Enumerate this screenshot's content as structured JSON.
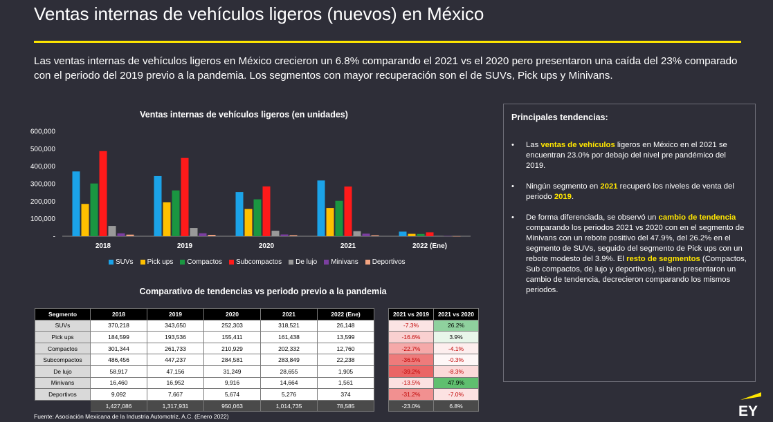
{
  "title": "Ventas internas de vehículos ligeros (nuevos) en México",
  "intro": "Las ventas internas de vehículos ligeros en México crecieron un 6.8% comparando el 2021 vs el 2020 pero presentaron una caída del 23% comparado con el periodo del 2019 previo a la pandemia. Los segmentos con mayor recuperación son el de SUVs, Pick ups y Minivans.",
  "chart_data": {
    "type": "bar",
    "title": "Ventas internas de vehículos ligeros (en unidades)",
    "categories": [
      "2018",
      "2019",
      "2020",
      "2021",
      "2022 (Ene)"
    ],
    "ylim": [
      0,
      600000
    ],
    "yticks": [
      0,
      100000,
      200000,
      300000,
      400000,
      500000,
      600000
    ],
    "ytick_labels": [
      "-",
      "100,000",
      "200,000",
      "300,000",
      "400,000",
      "500,000",
      "600,000"
    ],
    "grid": false,
    "legend_position": "bottom",
    "series": [
      {
        "name": "SUVs",
        "color": "#1ba3e8",
        "values": [
          370218,
          343650,
          252303,
          318521,
          26148
        ]
      },
      {
        "name": "Pick ups",
        "color": "#ffc000",
        "values": [
          184599,
          193536,
          155411,
          161438,
          13599
        ]
      },
      {
        "name": "Compactos",
        "color": "#1a9641",
        "values": [
          301344,
          261733,
          210929,
          202332,
          12760
        ]
      },
      {
        "name": "Subcompactos",
        "color": "#ff1a1a",
        "values": [
          486456,
          447237,
          284581,
          283849,
          22238
        ]
      },
      {
        "name": "De lujo",
        "color": "#999999",
        "values": [
          58917,
          47156,
          31249,
          28655,
          1905
        ]
      },
      {
        "name": "Minivans",
        "color": "#7b3fa0",
        "values": [
          16460,
          16952,
          9916,
          14664,
          1561
        ]
      },
      {
        "name": "Deportivos",
        "color": "#f4a582",
        "values": [
          9092,
          7667,
          5674,
          5276,
          374
        ]
      }
    ]
  },
  "table_title": "Comparativo de tendencias vs periodo previo a la pandemia",
  "table": {
    "headers": [
      "Segmento",
      "2018",
      "2019",
      "2020",
      "2021",
      "2022 (Ene)"
    ],
    "rows": [
      [
        "SUVs",
        "370,218",
        "343,650",
        "252,303",
        "318,521",
        "26,148"
      ],
      [
        "Pick ups",
        "184,599",
        "193,536",
        "155,411",
        "161,438",
        "13,599"
      ],
      [
        "Compactos",
        "301,344",
        "261,733",
        "210,929",
        "202,332",
        "12,760"
      ],
      [
        "Subcompactos",
        "486,456",
        "447,237",
        "284,581",
        "283,849",
        "22,238"
      ],
      [
        "De lujo",
        "58,917",
        "47,156",
        "31,249",
        "28,655",
        "1,905"
      ],
      [
        "Minivans",
        "16,460",
        "16,952",
        "9,916",
        "14,664",
        "1,561"
      ],
      [
        "Deportivos",
        "9,092",
        "7,667",
        "5,674",
        "5,276",
        "374"
      ]
    ],
    "totals": [
      "1,427,086",
      "1,317,931",
      "950,063",
      "1,014,735",
      "78,585"
    ]
  },
  "comparison": {
    "headers": [
      "2021 vs 2019",
      "2021 vs 2020"
    ],
    "rows": [
      [
        {
          "text": "-7.3%",
          "bg": "#fbe4e4"
        },
        {
          "text": "26.2%",
          "bg": "#8fd19e"
        }
      ],
      [
        {
          "text": "-16.6%",
          "bg": "#f9d0d0"
        },
        {
          "text": "3.9%",
          "bg": "#e8f6ea"
        }
      ],
      [
        {
          "text": "-22.7%",
          "bg": "#f5a9a9"
        },
        {
          "text": "-4.1%",
          "bg": "#fdeeee"
        }
      ],
      [
        {
          "text": "-36.5%",
          "bg": "#ee7b7b"
        },
        {
          "text": "-0.3%",
          "bg": "#fef7f7"
        }
      ],
      [
        {
          "text": "-39.2%",
          "bg": "#ea6565"
        },
        {
          "text": "-8.3%",
          "bg": "#fbdada"
        }
      ],
      [
        {
          "text": "-13.5%",
          "bg": "#fbe1e1"
        },
        {
          "text": "47.9%",
          "bg": "#5fbf6f"
        }
      ],
      [
        {
          "text": "-31.2%",
          "bg": "#f19090"
        },
        {
          "text": "-7.0%",
          "bg": "#fce2e2"
        }
      ]
    ],
    "totals": [
      "-23.0%",
      "6.8%"
    ]
  },
  "source": "Fuente: Asociación Mexicana de la Industria Automotriz, A.C. (Enero 2022)",
  "trends": {
    "title": "Principales tendencias:",
    "items": [
      [
        {
          "t": "Las "
        },
        {
          "t": "ventas de vehículos",
          "hl": true
        },
        {
          "t": " ligeros en México en el 2021 se encuentran 23.0% por debajo del nivel pre pandémico del 2019."
        }
      ],
      [
        {
          "t": "Ningún segmento en "
        },
        {
          "t": "2021",
          "hl": true
        },
        {
          "t": " recuperó los niveles de venta del periodo "
        },
        {
          "t": "2019",
          "hl": true
        },
        {
          "t": "."
        }
      ],
      [
        {
          "t": "De forma diferenciada, se observó un "
        },
        {
          "t": "cambio de tendencia",
          "hl": true
        },
        {
          "t": " comparando los periodos 2021 vs 2020 con en el segmento de Minivans con un rebote positivo del 47.9%, del 26.2% en el segmento de SUVs, seguido del segmento de Pick ups con un rebote modesto del 3.9%. El "
        },
        {
          "t": "resto de segmentos",
          "hl": true
        },
        {
          "t": " (Compactos, Sub compactos, de lujo y deportivos), si bien presentaron un cambio de tendencia, decrecieron comparando los mismos periodos."
        }
      ]
    ]
  },
  "logo_text": "EY",
  "colors": {
    "background": "#2e2e38",
    "accent": "#ffe600"
  }
}
